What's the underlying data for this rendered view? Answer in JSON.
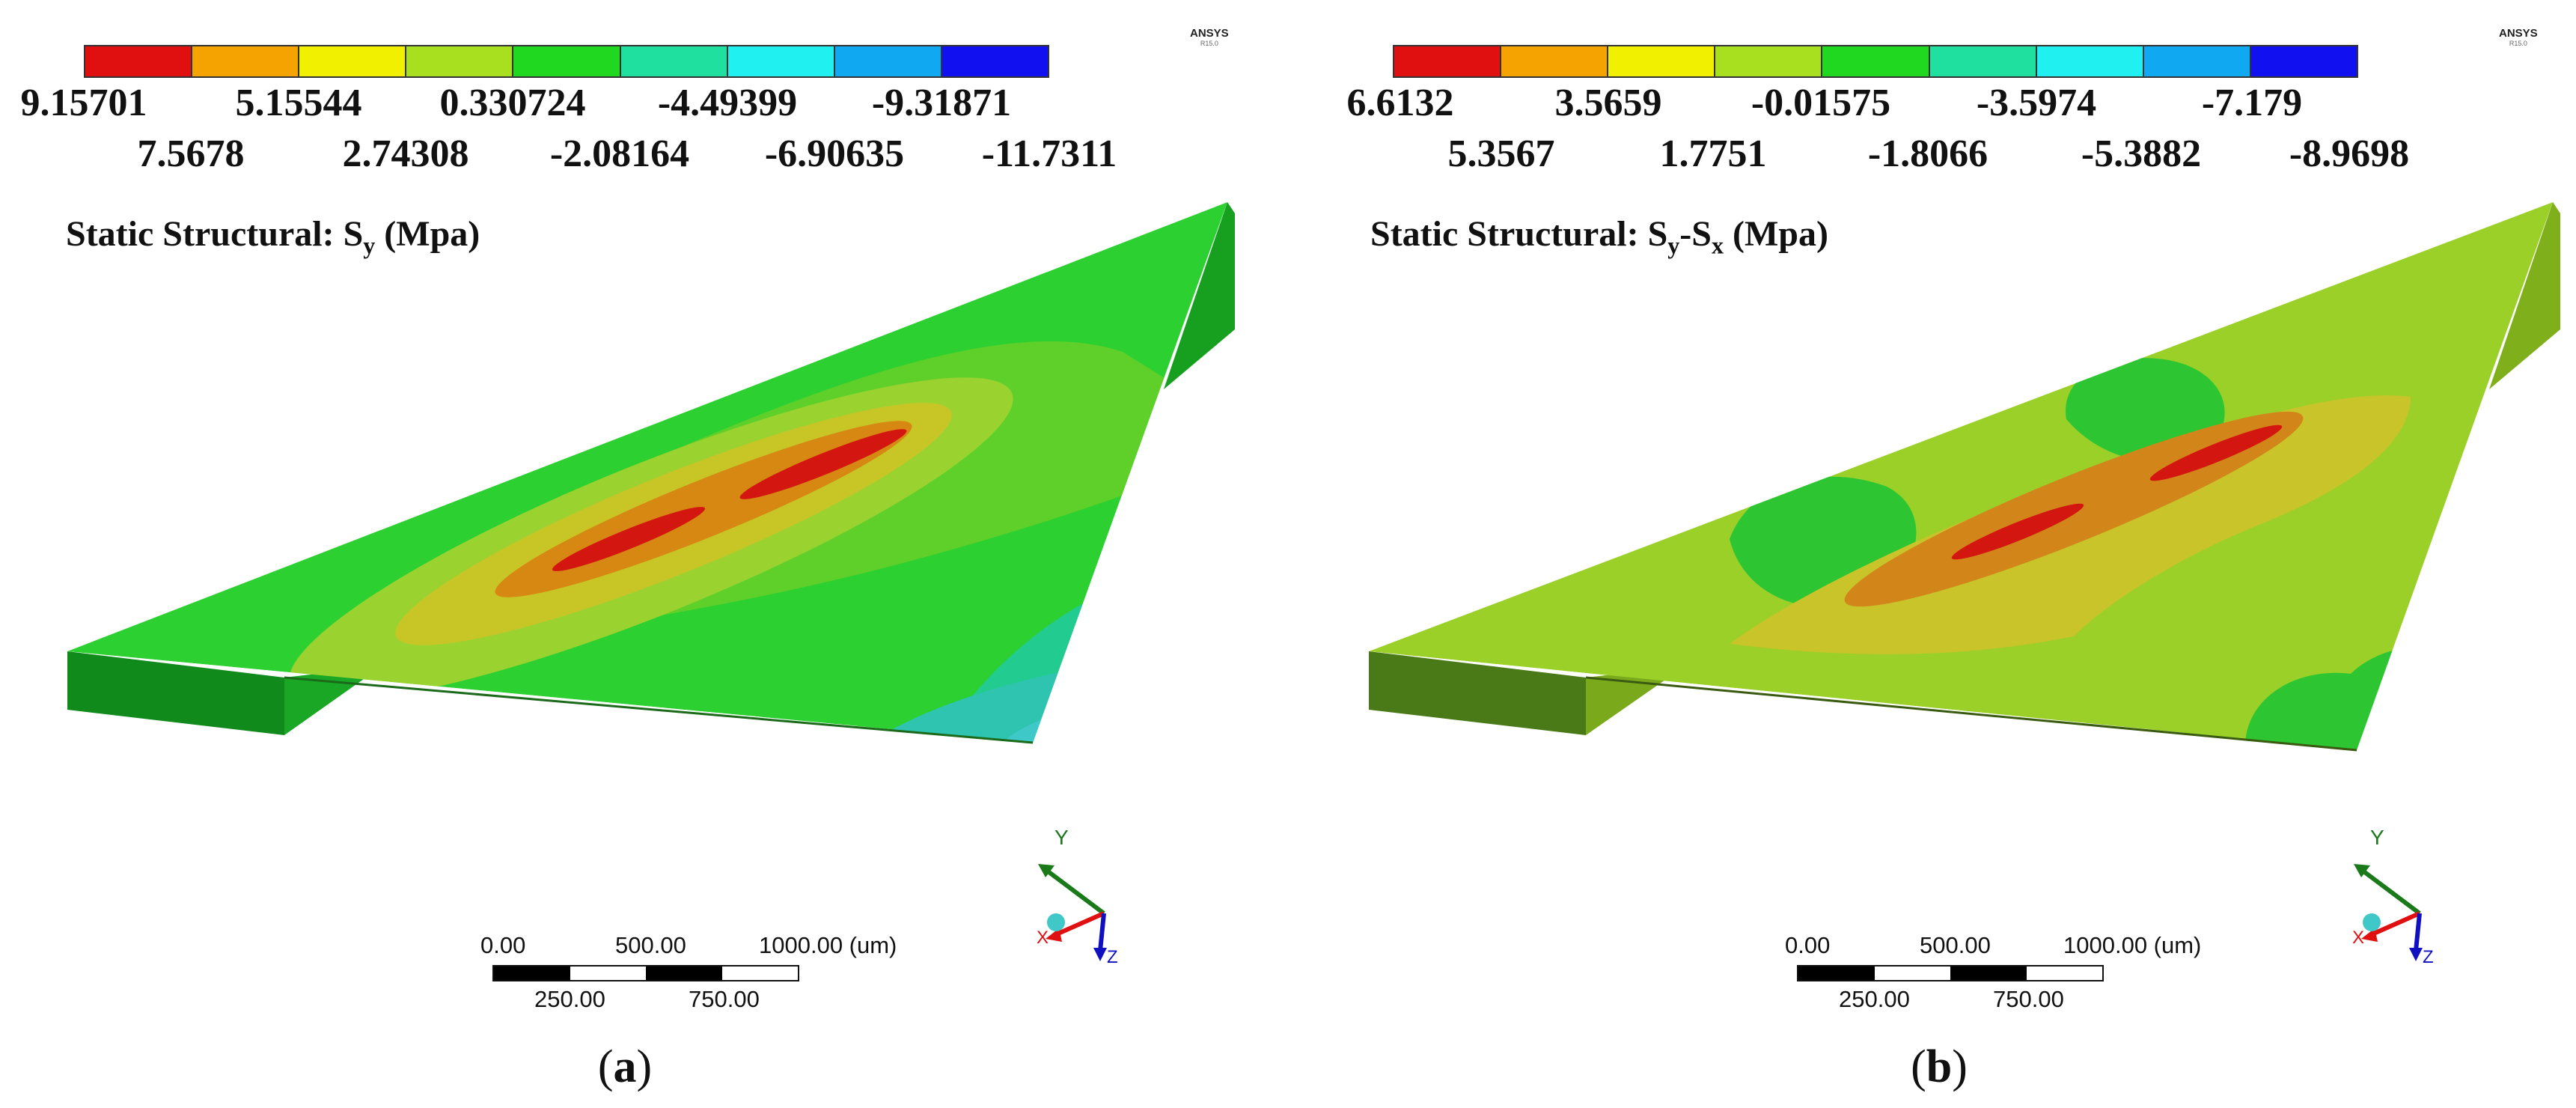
{
  "palette": [
    "#e01010",
    "#f4a300",
    "#f0f000",
    "#a8e020",
    "#20d820",
    "#20e0a0",
    "#20f0f0",
    "#10a8f0",
    "#1010f0"
  ],
  "panels": [
    {
      "id": "a",
      "legend_top": [
        "9.15701",
        "5.15544",
        "0.330724",
        "-4.49399",
        "-9.31871"
      ],
      "legend_bottom": [
        "7.5678",
        "2.74308",
        "-2.08164",
        "-6.90635",
        "-11.7311"
      ],
      "title_text": "Static Structural: S",
      "title_sub1": "y",
      "title_mid": "",
      "title_sub2": "",
      "title_unit": " (Mpa)",
      "ansys_brand": "ANSYS",
      "ansys_version": "R15.0",
      "scale_top": [
        "0.00",
        "500.00",
        "1000.00 (um)"
      ],
      "scale_bottom": [
        "250.00",
        "750.00"
      ],
      "triad_y": "Y",
      "triad_x": "X",
      "triad_z": "Z",
      "caption_open": "(",
      "caption_letter": "a",
      "caption_close": ")"
    },
    {
      "id": "b",
      "legend_top": [
        "6.6132",
        "3.5659",
        "-0.01575",
        "-3.5974",
        "-7.179"
      ],
      "legend_bottom": [
        "5.3567",
        "1.7751",
        "-1.8066",
        "-5.3882",
        "-8.9698"
      ],
      "title_text": "Static Structural: S",
      "title_sub1": "y",
      "title_mid": "-S",
      "title_sub2": "x",
      "title_unit": " (Mpa)",
      "ansys_brand": "ANSYS",
      "ansys_version": "R15.0",
      "scale_top": [
        "0.00",
        "500.00",
        "1000.00 (um)"
      ],
      "scale_bottom": [
        "250.00",
        "750.00"
      ],
      "triad_y": "Y",
      "triad_x": "X",
      "triad_z": "Z",
      "caption_open": "(",
      "caption_letter": "b",
      "caption_close": ")"
    }
  ]
}
